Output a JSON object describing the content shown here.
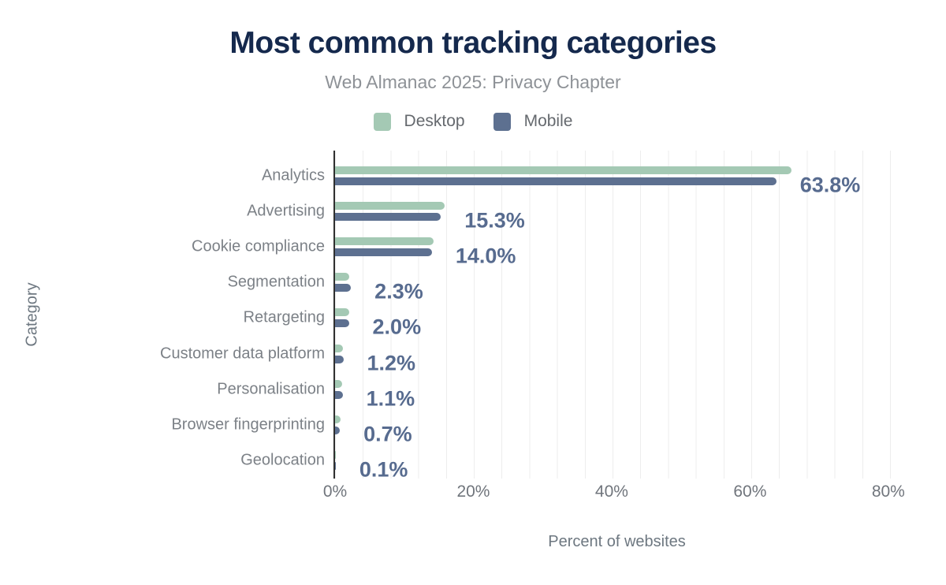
{
  "chart_data": {
    "type": "bar",
    "orientation": "horizontal",
    "title": "Most common tracking categories",
    "subtitle": "Web Almanac 2025: Privacy Chapter",
    "xlabel": "Percent of websites",
    "ylabel": "Category",
    "xlim": [
      0,
      81.5
    ],
    "xticks": [
      0,
      20,
      40,
      60,
      80
    ],
    "xtick_labels": [
      "0%",
      "20%",
      "40%",
      "60%",
      "80%"
    ],
    "grid": "vertical-minor-every-4pct",
    "legend_position": "top-center",
    "categories": [
      "Analytics",
      "Advertising",
      "Cookie compliance",
      "Segmentation",
      "Retargeting",
      "Customer data platform",
      "Personalisation",
      "Browser fingerprinting",
      "Geolocation"
    ],
    "series": [
      {
        "name": "Desktop",
        "color": "#a4c9b4",
        "values": [
          66.0,
          15.9,
          14.2,
          2.1,
          2.0,
          1.1,
          1.0,
          0.8,
          0.1
        ]
      },
      {
        "name": "Mobile",
        "color": "#5d7090",
        "values": [
          63.8,
          15.3,
          14.0,
          2.3,
          2.0,
          1.2,
          1.1,
          0.7,
          0.1
        ]
      }
    ],
    "data_labels": {
      "labeled_series": "Mobile",
      "values": [
        "63.8%",
        "15.3%",
        "14.0%",
        "2.3%",
        "2.0%",
        "1.2%",
        "1.1%",
        "0.7%",
        "0.1%"
      ]
    }
  },
  "colors": {
    "title": "#15294d",
    "subtitle": "#8e9297",
    "value_label": "#576b8f",
    "axis_line": "#2f2f2f",
    "gridline": "#ededed",
    "background": "#ffffff"
  }
}
